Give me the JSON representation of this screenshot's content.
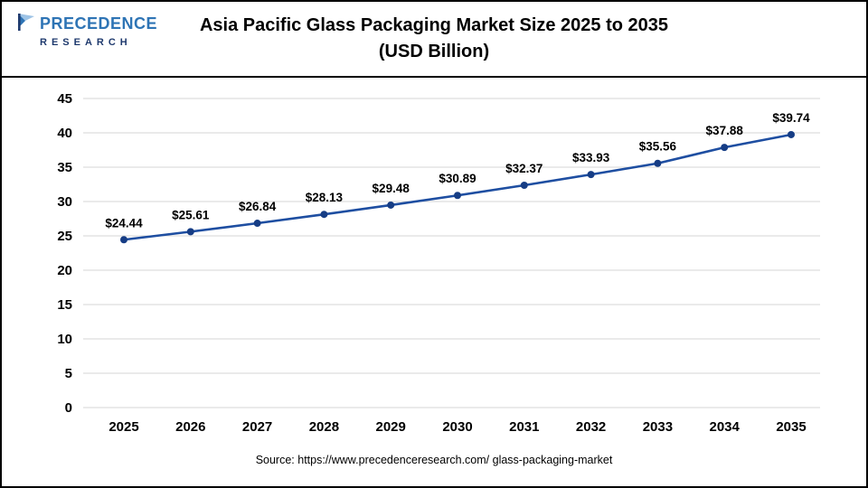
{
  "header": {
    "title_line1": "Asia Pacific Glass Packaging Market Size 2025 to 2035",
    "title_line2": "(USD Billion)"
  },
  "logo": {
    "line1": "PRECEDENCE",
    "line2": "RESEARCH"
  },
  "footer": {
    "source": "Source: https://www.precedenceresearch.com/ glass-packaging-market"
  },
  "chart_data": {
    "type": "line",
    "title": "Asia Pacific Glass Packaging Market Size 2025 to 2035 (USD Billion)",
    "categories": [
      "2025",
      "2026",
      "2027",
      "2028",
      "2029",
      "2030",
      "2031",
      "2032",
      "2033",
      "2034",
      "2035"
    ],
    "values": [
      24.44,
      25.61,
      26.84,
      28.13,
      29.48,
      30.89,
      32.37,
      33.93,
      35.56,
      37.88,
      39.74
    ],
    "labels": [
      "$24.44",
      "$25.61",
      "$26.84",
      "$28.13",
      "$29.48",
      "$30.89",
      "$32.37",
      "$33.93",
      "$35.56",
      "$37.88",
      "$39.74"
    ],
    "xlabel": "",
    "ylabel": "",
    "ylim": [
      0,
      45
    ],
    "yticks": [
      0,
      5,
      10,
      15,
      20,
      25,
      30,
      35,
      40,
      45
    ],
    "grid": true,
    "legend": "none",
    "line_color": "#1e4ea1",
    "marker_color": "#163d85",
    "grid_color": "#d6d6d6"
  }
}
